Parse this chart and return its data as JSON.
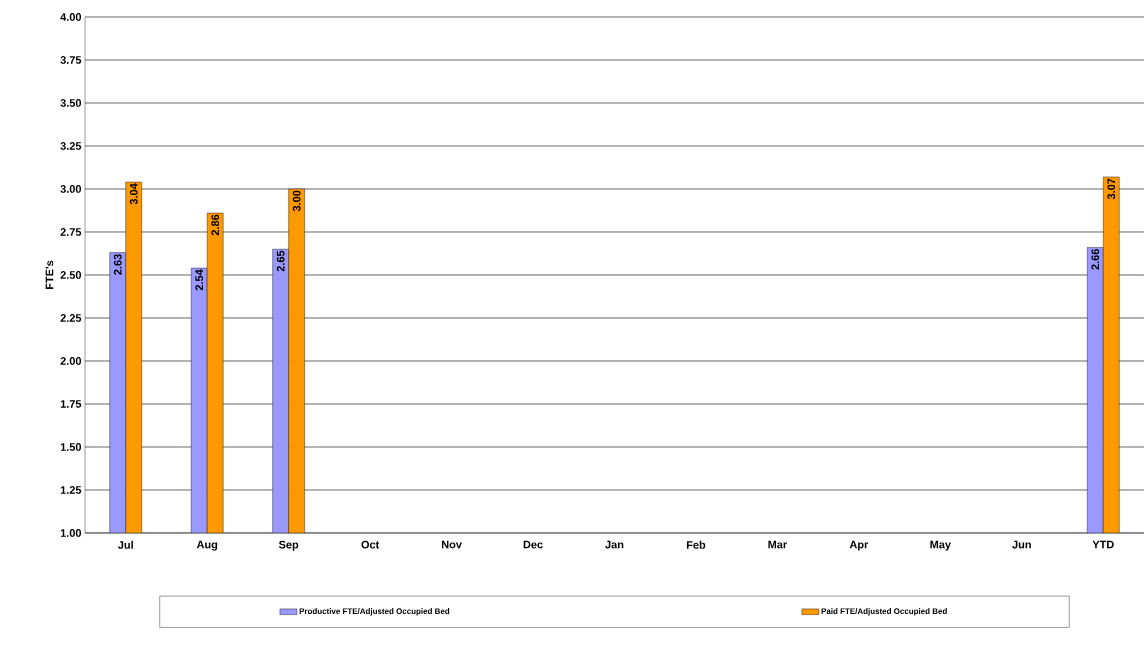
{
  "chart_data": {
    "type": "bar",
    "categories": [
      "Jul",
      "Aug",
      "Sep",
      "Oct",
      "Nov",
      "Dec",
      "Jan",
      "Feb",
      "Mar",
      "Apr",
      "May",
      "Jun",
      "YTD"
    ],
    "ylabel": "FTE's",
    "series": [
      {
        "name": "Productive FTE/Adjusted Occupied Bed",
        "color": "#9999ff",
        "values": [
          2.63,
          2.54,
          2.65,
          null,
          null,
          null,
          null,
          null,
          null,
          null,
          null,
          null,
          2.66
        ],
        "value_labels": [
          "2.63",
          "2.54",
          "2.65",
          null,
          null,
          null,
          null,
          null,
          null,
          null,
          null,
          null,
          "2.66"
        ]
      },
      {
        "name": "Paid FTE/Adjusted Occupied Bed",
        "color": "#ff9900",
        "values": [
          3.04,
          2.86,
          3.0,
          null,
          null,
          null,
          null,
          null,
          null,
          null,
          null,
          null,
          3.07
        ],
        "value_labels": [
          "3.04",
          "2.86",
          "3.00",
          null,
          null,
          null,
          null,
          null,
          null,
          null,
          null,
          null,
          "3.07"
        ]
      }
    ],
    "ylim": [
      1,
      4
    ],
    "yticks": [
      {
        "value": 1,
        "label": "1.00"
      },
      {
        "value": 1.25,
        "label": "1.25"
      },
      {
        "value": 1.5,
        "label": "1.50"
      },
      {
        "value": 1.75,
        "label": "1.75"
      },
      {
        "value": 2,
        "label": "2.00"
      },
      {
        "value": 2.25,
        "label": "2.25"
      },
      {
        "value": 2.5,
        "label": "2.50"
      },
      {
        "value": 2.75,
        "label": "2.75"
      },
      {
        "value": 3,
        "label": "3.00"
      },
      {
        "value": 3.25,
        "label": "3.25"
      },
      {
        "value": 3.5,
        "label": "3.50"
      },
      {
        "value": 3.75,
        "label": "3.75"
      },
      {
        "value": 4,
        "label": "4.00"
      }
    ],
    "grid": "y",
    "legend": "bottom"
  }
}
